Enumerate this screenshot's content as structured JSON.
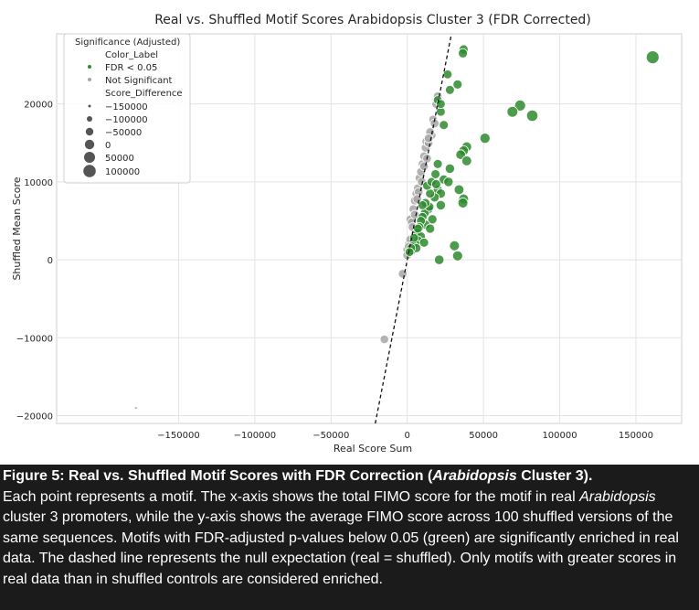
{
  "chart_data": {
    "type": "scatter",
    "title": "Real vs. Shuffled Motif Scores Arabidopsis Cluster 3 (FDR Corrected)",
    "xlabel": "Real Score Sum",
    "ylabel": "Shuffled Mean Score",
    "xlim": [
      -230000,
      180000
    ],
    "ylim": [
      -21000,
      29000
    ],
    "xticks": [
      -150000,
      -100000,
      -50000,
      0,
      50000,
      100000,
      150000
    ],
    "xtick_labels": [
      "−150000",
      "−100000",
      "−50000",
      "0",
      "50000",
      "100000",
      "150000"
    ],
    "yticks": [
      -20000,
      -10000,
      0,
      10000,
      20000
    ],
    "ytick_labels": [
      "−20000",
      "−10000",
      "0",
      "10000",
      "20000"
    ],
    "grid": true,
    "reference_line": {
      "style": "dashed",
      "description": "y = x"
    },
    "legend": {
      "placement": "top-left",
      "title": "Significance (Adjusted)",
      "color_header": "Color_Label",
      "color_entries": [
        {
          "label": "FDR < 0.05",
          "color": "#2e8b2e"
        },
        {
          "label": "Not Significant",
          "color": "#a6a6a6"
        }
      ],
      "size_header": "Score_Difference",
      "size_entries": [
        {
          "label": "−150000",
          "value": -150000
        },
        {
          "label": "−100000",
          "value": -100000
        },
        {
          "label": "−50000",
          "value": -50000
        },
        {
          "label": "0",
          "value": 0
        },
        {
          "label": "50000",
          "value": 50000
        },
        {
          "label": "100000",
          "value": 100000
        }
      ]
    },
    "colors": {
      "significant": "#2e8b2e",
      "not_significant": "#a6a6a6"
    },
    "series": [
      {
        "name": "FDR < 0.05",
        "color": "#2e8b2e",
        "points": [
          [
            161000,
            26000
          ],
          [
            37000,
            27000
          ],
          [
            36500,
            26500
          ],
          [
            33000,
            22500
          ],
          [
            28000,
            21800
          ],
          [
            26500,
            23800
          ],
          [
            22000,
            19000
          ],
          [
            20000,
            20500
          ],
          [
            24000,
            17300
          ],
          [
            22000,
            20000
          ],
          [
            74000,
            19800
          ],
          [
            69000,
            19000
          ],
          [
            82000,
            18500
          ],
          [
            51000,
            15600
          ],
          [
            39000,
            14500
          ],
          [
            37000,
            14000
          ],
          [
            35000,
            13500
          ],
          [
            39000,
            12700
          ],
          [
            20000,
            12300
          ],
          [
            28000,
            11700
          ],
          [
            24000,
            10300
          ],
          [
            27000,
            10000
          ],
          [
            34000,
            9000
          ],
          [
            37000,
            7800
          ],
          [
            36500,
            7300
          ],
          [
            20000,
            9000
          ],
          [
            22000,
            8500
          ],
          [
            18000,
            8000
          ],
          [
            15000,
            8500
          ],
          [
            13000,
            9500
          ],
          [
            16000,
            10000
          ],
          [
            19000,
            9700
          ],
          [
            22000,
            7000
          ],
          [
            14000,
            6500
          ],
          [
            11500,
            6000
          ],
          [
            10000,
            5500
          ],
          [
            16500,
            5200
          ],
          [
            12000,
            4500
          ],
          [
            9000,
            5000
          ],
          [
            8000,
            4200
          ],
          [
            6500,
            3500
          ],
          [
            9000,
            3000
          ],
          [
            7000,
            2500
          ],
          [
            5500,
            2000
          ],
          [
            4000,
            1800
          ],
          [
            3000,
            1200
          ],
          [
            6000,
            1500
          ],
          [
            11000,
            2200
          ],
          [
            31000,
            1800
          ],
          [
            33000,
            500
          ],
          [
            21000,
            0
          ],
          [
            14500,
            6800
          ],
          [
            12000,
            7300
          ],
          [
            15000,
            4000
          ],
          [
            18500,
            11000
          ],
          [
            7000,
            4000
          ],
          [
            4500,
            2800
          ],
          [
            2500,
            1500
          ],
          [
            1500,
            1000
          ],
          [
            10000,
            7000
          ]
        ]
      },
      {
        "name": "Not Significant",
        "color": "#a6a6a6",
        "points": [
          [
            -178000,
            -19000
          ],
          [
            -15000,
            -10200
          ],
          [
            -3000,
            -1800
          ],
          [
            0,
            1300
          ],
          [
            1000,
            2000
          ],
          [
            2000,
            5200
          ],
          [
            3000,
            4800
          ],
          [
            4000,
            6500
          ],
          [
            5000,
            7600
          ],
          [
            6000,
            8500
          ],
          [
            7000,
            9200
          ],
          [
            8000,
            10500
          ],
          [
            9000,
            11300
          ],
          [
            10000,
            12300
          ],
          [
            11000,
            13300
          ],
          [
            12000,
            14400
          ],
          [
            12500,
            15200
          ],
          [
            14000,
            15000
          ],
          [
            16000,
            16000
          ],
          [
            17000,
            18000
          ],
          [
            18000,
            17500
          ],
          [
            19000,
            20000
          ],
          [
            20000,
            21000
          ],
          [
            13000,
            13000
          ],
          [
            15000,
            16400
          ],
          [
            11000,
            12000
          ],
          [
            9500,
            10000
          ],
          [
            7500,
            8700
          ],
          [
            6500,
            7800
          ],
          [
            5000,
            5800
          ],
          [
            3500,
            4200
          ],
          [
            2000,
            2600
          ],
          [
            1000,
            1700
          ],
          [
            0,
            600
          ],
          [
            14000,
            15600
          ]
        ]
      }
    ]
  },
  "caption": {
    "title_prefix": "Figure 5: Real vs. Shuffled Motif Scores with FDR Correction (",
    "title_italic": "Arabidopsis",
    "title_suffix": " Cluster 3).",
    "body_1": "Each point represents a motif. The x-axis shows the total FIMO score for the motif in real ",
    "body_italic": "Arabidopsis",
    "body_2": " cluster 3 promoters, while the y-axis shows the average FIMO score across 100 shuffled versions of the same sequences. Motifs with FDR-adjusted p-values below 0.05 (green) are significantly enriched in real data. The dashed line represents the null expectation (real = shuffled). Only motifs with greater scores in real data than in shuffled controls are considered enriched."
  }
}
